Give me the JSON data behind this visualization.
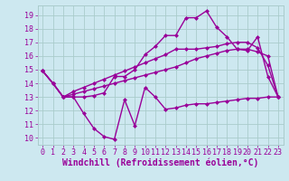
{
  "background_color": "#cde8f0",
  "grid_color": "#aacccc",
  "line_color": "#990099",
  "marker": "D",
  "markersize": 2.5,
  "linewidth": 1.0,
  "xlabel": "Windchill (Refroidissement éolien,°C)",
  "xlabel_fontsize": 7.0,
  "ylabel_ticks": [
    10,
    11,
    12,
    13,
    14,
    15,
    16,
    17,
    18,
    19
  ],
  "xlabel_ticks": [
    0,
    1,
    2,
    3,
    4,
    5,
    6,
    7,
    8,
    9,
    10,
    11,
    12,
    13,
    14,
    15,
    16,
    17,
    18,
    19,
    20,
    21,
    22,
    23
  ],
  "ylim": [
    9.5,
    19.7
  ],
  "xlim": [
    -0.5,
    23.5
  ],
  "series1_x": [
    0,
    1,
    2,
    3,
    4,
    5,
    6,
    7,
    8,
    9,
    10,
    11,
    12,
    13,
    14,
    15,
    16,
    17,
    18,
    19,
    20,
    21,
    22,
    23
  ],
  "series1_y": [
    14.9,
    14.0,
    13.0,
    13.0,
    11.8,
    10.7,
    10.1,
    9.9,
    12.8,
    10.9,
    13.7,
    13.0,
    12.1,
    12.2,
    12.4,
    12.5,
    12.5,
    12.6,
    12.7,
    12.8,
    12.9,
    12.9,
    13.0,
    13.0
  ],
  "series2_x": [
    0,
    1,
    2,
    3,
    4,
    5,
    6,
    7,
    8,
    9,
    10,
    11,
    12,
    13,
    14,
    15,
    16,
    17,
    18,
    19,
    20,
    21,
    22,
    23
  ],
  "series2_y": [
    14.9,
    14.0,
    13.0,
    13.2,
    13.4,
    13.6,
    13.8,
    14.0,
    14.2,
    14.4,
    14.6,
    14.8,
    15.0,
    15.2,
    15.5,
    15.8,
    16.0,
    16.2,
    16.4,
    16.5,
    16.5,
    16.3,
    16.0,
    13.0
  ],
  "series3_x": [
    0,
    1,
    2,
    3,
    4,
    5,
    6,
    7,
    8,
    9,
    10,
    11,
    12,
    13,
    14,
    15,
    16,
    17,
    18,
    19,
    20,
    21,
    22,
    23
  ],
  "series3_y": [
    14.9,
    14.0,
    13.0,
    13.4,
    13.7,
    14.0,
    14.3,
    14.6,
    14.9,
    15.2,
    15.5,
    15.8,
    16.1,
    16.5,
    16.5,
    16.5,
    16.6,
    16.7,
    16.9,
    17.0,
    17.0,
    16.6,
    15.3,
    13.0
  ],
  "series4_x": [
    0,
    1,
    2,
    3,
    4,
    5,
    6,
    7,
    8,
    9,
    10,
    11,
    12,
    13,
    14,
    15,
    16,
    17,
    18,
    19,
    20,
    21,
    22,
    23
  ],
  "series4_y": [
    14.9,
    14.0,
    13.0,
    13.0,
    13.0,
    13.1,
    13.3,
    14.5,
    14.5,
    15.0,
    16.1,
    16.7,
    17.5,
    17.5,
    18.8,
    18.8,
    19.3,
    18.1,
    17.4,
    16.5,
    16.4,
    17.4,
    14.5,
    13.0
  ],
  "tick_fontsize": 6.0,
  "tick_color": "#990099"
}
